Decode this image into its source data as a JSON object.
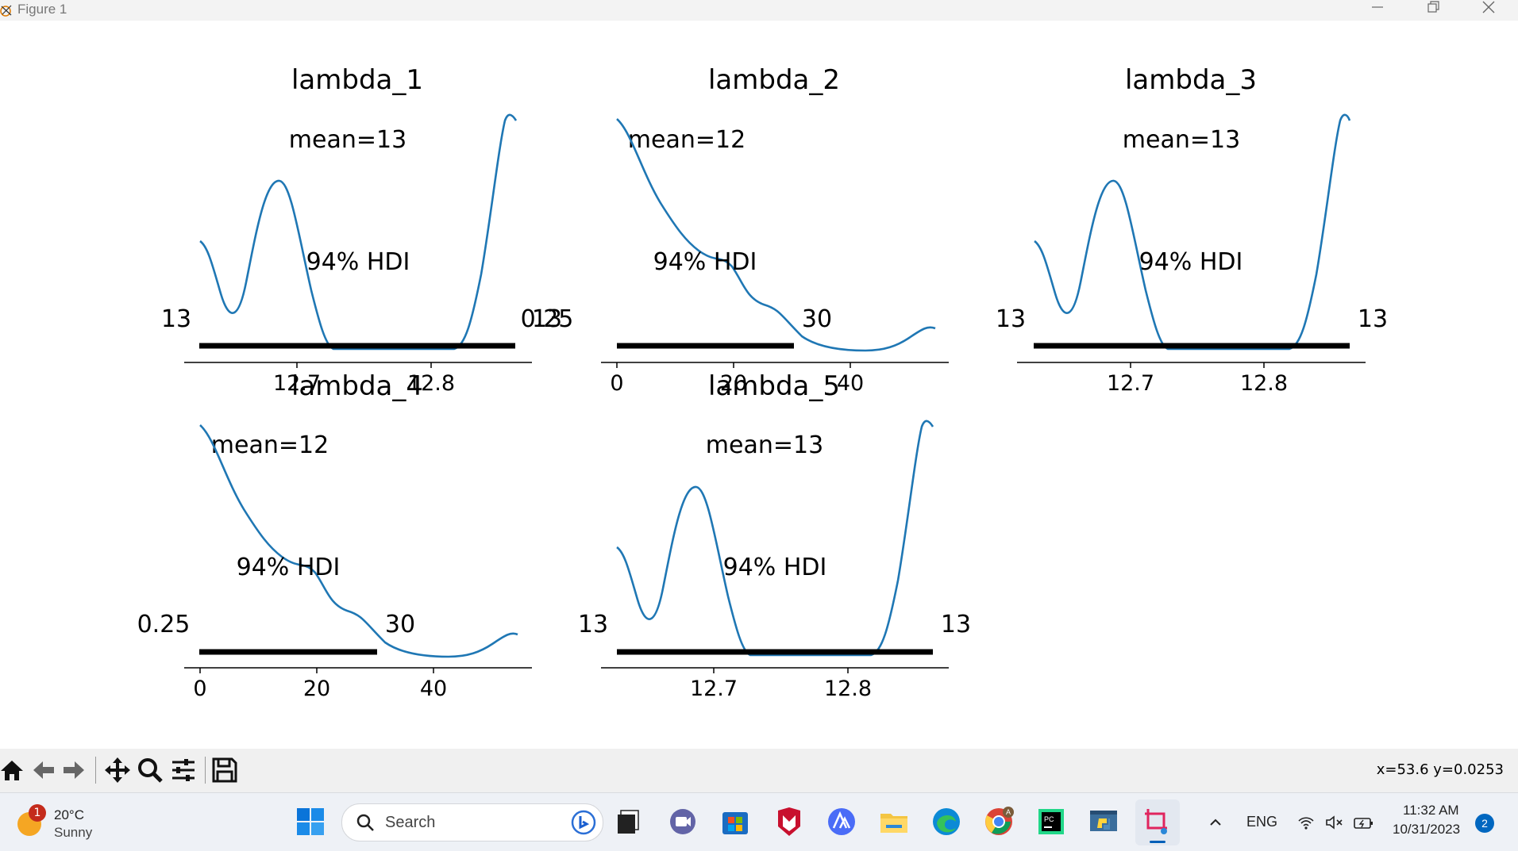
{
  "window": {
    "title": "Figure 1"
  },
  "figure": {
    "plots": [
      {
        "title": "lambda_1",
        "mean_label": "mean=13",
        "hdi_label": "94% HDI",
        "hdi_left": "13",
        "hdi_right": "13",
        "ticks": [
          "12.7",
          "12.8"
        ]
      },
      {
        "title": "lambda_2",
        "mean_label": "mean=12",
        "hdi_label": "94% HDI",
        "hdi_left": "0.25",
        "hdi_right": "30",
        "ticks": [
          "0",
          "20",
          "40"
        ]
      },
      {
        "title": "lambda_3",
        "mean_label": "mean=13",
        "hdi_label": "94% HDI",
        "hdi_left": "13",
        "hdi_right": "13",
        "ticks": [
          "12.7",
          "12.8"
        ]
      },
      {
        "title": "lambda_4",
        "mean_label": "mean=12",
        "hdi_label": "94% HDI",
        "hdi_left": "0.25",
        "hdi_right": "30",
        "ticks": [
          "0",
          "20",
          "40"
        ]
      },
      {
        "title": "lambda_5",
        "mean_label": "mean=13",
        "hdi_label": "94% HDI",
        "hdi_left": "13",
        "hdi_right": "13",
        "ticks": [
          "12.7",
          "12.8"
        ]
      }
    ],
    "colors": {
      "kde_line": "#1f77b4",
      "hdi_bar": "#000000"
    }
  },
  "toolbar": {
    "icons": [
      "home-icon",
      "back-arrow-icon",
      "forward-arrow-icon",
      "pan-icon",
      "zoom-icon",
      "configure-subplots-icon",
      "save-icon"
    ],
    "coords": "x=53.6 y=0.0253"
  },
  "taskbar": {
    "weather_temp": "20°C",
    "weather_cond": "Sunny",
    "weather_badge": "1",
    "search_placeholder": "Search",
    "language": "ENG",
    "time": "11:32 AM",
    "date": "10/31/2023",
    "notification_count": "2",
    "apps": [
      "task-view-icon",
      "teams-chat-icon",
      "microsoft-store-icon",
      "mcafee-icon",
      "vpn-app-icon",
      "file-explorer-icon",
      "edge-icon",
      "chrome-icon",
      "pycharm-icon",
      "python-icon",
      "snipping-tool-icon"
    ]
  }
}
